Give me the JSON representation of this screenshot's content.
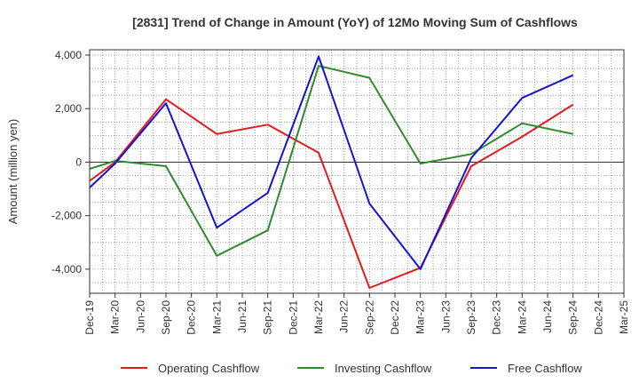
{
  "chart_data": {
    "type": "line",
    "title": "[2831]  Trend of Change in Amount (YoY) of 12Mo Moving Sum of Cashflows",
    "xlabel": "",
    "ylabel": "Amount (million yen)",
    "ylim": [
      -4900,
      4200
    ],
    "yticks": [
      4000,
      2000,
      0,
      -2000,
      -4000
    ],
    "ytick_labels": [
      "4,000",
      "2,000",
      "0",
      "-2,000",
      "-4,000"
    ],
    "categories": [
      "Dec-19",
      "Mar-20",
      "Jun-20",
      "Sep-20",
      "Dec-20",
      "Mar-21",
      "Jun-21",
      "Sep-21",
      "Dec-21",
      "Mar-22",
      "Jun-22",
      "Sep-22",
      "Dec-22",
      "Mar-23",
      "Jun-23",
      "Sep-23",
      "Dec-23",
      "Mar-24",
      "Jun-24",
      "Sep-24",
      "Dec-24",
      "Mar-25"
    ],
    "grid": true,
    "legend_position": "bottom",
    "series": [
      {
        "name": "Operating Cashflow",
        "color": "#e41a1c",
        "values": [
          -700,
          0,
          null,
          2350,
          null,
          1050,
          null,
          1400,
          null,
          350,
          null,
          -4700,
          null,
          -3950,
          null,
          -150,
          null,
          950,
          null,
          2150,
          null,
          null
        ]
      },
      {
        "name": "Investing Cashflow",
        "color": "#2e8b2e",
        "values": [
          -250,
          50,
          null,
          -150,
          null,
          -3500,
          null,
          -2550,
          null,
          3600,
          null,
          3150,
          null,
          -50,
          null,
          300,
          null,
          1450,
          null,
          1050,
          null,
          null
        ]
      },
      {
        "name": "Free Cashflow",
        "color": "#1515d0",
        "values": [
          -950,
          -50,
          null,
          2200,
          null,
          -2450,
          null,
          -1150,
          null,
          3950,
          null,
          -1550,
          null,
          -4000,
          null,
          150,
          null,
          2400,
          null,
          3250,
          null,
          null
        ]
      }
    ]
  }
}
